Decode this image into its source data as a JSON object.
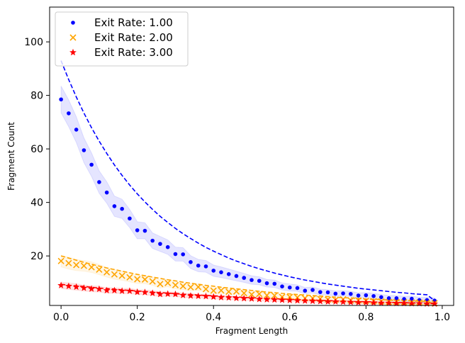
{
  "chart_data": {
    "type": "scatter",
    "xlabel": "Fragment Length",
    "ylabel": "Fragment Count",
    "xlim": [
      -0.03,
      1.03
    ],
    "ylim": [
      1.5,
      113
    ],
    "xticks": [
      0.0,
      0.2,
      0.4,
      0.6,
      0.8,
      1.0
    ],
    "xtick_labels": [
      "0.0",
      "0.2",
      "0.4",
      "0.6",
      "0.8",
      "1.0"
    ],
    "yticks": [
      20,
      40,
      60,
      80,
      100
    ],
    "ytick_labels": [
      "20",
      "40",
      "60",
      "80",
      "100"
    ],
    "legend_position": "top-left",
    "grid": false,
    "x": [
      0.0,
      0.02,
      0.04,
      0.06,
      0.08,
      0.1,
      0.12,
      0.14,
      0.16,
      0.18,
      0.2,
      0.22,
      0.24,
      0.26,
      0.28,
      0.3,
      0.32,
      0.34,
      0.36,
      0.38,
      0.4,
      0.42,
      0.44,
      0.46,
      0.48,
      0.5,
      0.52,
      0.54,
      0.56,
      0.58,
      0.6,
      0.62,
      0.64,
      0.66,
      0.68,
      0.7,
      0.72,
      0.74,
      0.76,
      0.78,
      0.8,
      0.82,
      0.84,
      0.86,
      0.88,
      0.9,
      0.92,
      0.94,
      0.96,
      0.98
    ],
    "series": [
      {
        "name": "Exit Rate: 1.00",
        "color": "#0000ff",
        "marker": "dot",
        "values": [
          78.5,
          73.3,
          67.2,
          59.5,
          54.1,
          47.6,
          43.7,
          38.6,
          37.6,
          34.0,
          29.6,
          29.4,
          25.7,
          24.5,
          23.3,
          20.7,
          20.6,
          17.7,
          16.4,
          16.1,
          14.5,
          13.9,
          13.2,
          12.5,
          11.8,
          11.0,
          10.7,
          9.8,
          9.6,
          8.6,
          8.2,
          8.0,
          7.0,
          7.3,
          6.5,
          6.4,
          5.9,
          6.0,
          5.8,
          5.2,
          5.3,
          5.0,
          4.6,
          4.2,
          4.2,
          3.9,
          4.0,
          3.5,
          3.5,
          3.3
        ],
        "fit": [
          93.0,
          85.9,
          79.4,
          73.4,
          67.9,
          62.9,
          58.3,
          54.0,
          50.1,
          46.5,
          43.2,
          40.2,
          37.4,
          34.8,
          32.5,
          30.3,
          28.3,
          26.5,
          24.8,
          23.2,
          21.8,
          20.5,
          19.2,
          18.1,
          17.1,
          16.1,
          15.2,
          14.4,
          13.6,
          12.9,
          12.2,
          11.6,
          11.0,
          10.5,
          10.0,
          9.5,
          9.1,
          8.7,
          8.3,
          7.9,
          7.6,
          7.3,
          7.0,
          6.7,
          6.4,
          6.2,
          5.9,
          5.7,
          5.5,
          3.3
        ],
        "band_width": [
          5.0,
          5.0,
          4.8,
          4.6,
          4.4,
          4.2,
          4.0,
          3.8,
          3.6,
          3.4,
          3.2,
          3.0,
          2.9,
          2.8,
          2.7,
          2.6,
          2.5,
          2.4,
          2.3,
          2.2,
          2.1,
          2.0,
          1.9,
          1.8,
          1.7,
          1.6,
          1.5,
          1.4,
          1.4,
          1.3,
          1.3,
          1.2,
          1.2,
          1.1,
          1.1,
          1.0,
          1.0,
          1.0,
          1.0,
          1.0,
          1.0,
          1.0,
          1.0,
          1.0,
          1.0,
          1.0,
          1.0,
          1.0,
          1.0,
          1.0
        ]
      },
      {
        "name": "Exit Rate: 2.00",
        "color": "#ffa500",
        "marker": "x",
        "values": [
          18.1,
          17.3,
          16.6,
          16.3,
          15.8,
          14.9,
          13.9,
          13.1,
          12.6,
          12.0,
          11.3,
          11.2,
          10.5,
          9.5,
          9.9,
          9.1,
          8.7,
          8.3,
          8.4,
          7.6,
          7.0,
          7.1,
          6.6,
          6.7,
          6.1,
          5.6,
          5.8,
          5.3,
          5.2,
          4.7,
          4.7,
          4.5,
          4.2,
          4.2,
          4.0,
          3.7,
          3.6,
          3.8,
          3.4,
          3.4,
          3.2,
          3.1,
          3.0,
          2.8,
          2.8,
          2.7,
          2.6,
          2.6,
          2.5,
          2.3
        ],
        "fit": [
          20.0,
          19.2,
          18.4,
          17.6,
          16.9,
          16.2,
          15.5,
          14.9,
          14.3,
          13.7,
          13.1,
          12.6,
          12.1,
          11.6,
          11.1,
          10.7,
          10.2,
          9.8,
          9.4,
          9.0,
          8.7,
          8.3,
          8.0,
          7.7,
          7.4,
          7.1,
          6.8,
          6.5,
          6.3,
          6.0,
          5.8,
          5.6,
          5.4,
          5.2,
          5.0,
          4.8,
          4.6,
          4.4,
          4.3,
          4.1,
          3.9,
          3.8,
          3.7,
          3.5,
          3.4,
          3.3,
          3.2,
          3.1,
          3.0,
          2.3
        ],
        "band_width": [
          2.2,
          2.2,
          2.1,
          2.0,
          2.0,
          1.9,
          1.8,
          1.8,
          1.7,
          1.7,
          1.6,
          1.6,
          1.5,
          1.5,
          1.4,
          1.4,
          1.3,
          1.3,
          1.2,
          1.2,
          1.1,
          1.1,
          1.0,
          1.0,
          1.0,
          0.9,
          0.9,
          0.9,
          0.8,
          0.8,
          0.8,
          0.8,
          0.7,
          0.7,
          0.7,
          0.7,
          0.7,
          0.6,
          0.6,
          0.6,
          0.6,
          0.6,
          0.6,
          0.6,
          0.6,
          0.6,
          0.6,
          0.6,
          0.6,
          0.6
        ]
      },
      {
        "name": "Exit Rate: 3.00",
        "color": "#ff0000",
        "marker": "star",
        "values": [
          9.0,
          8.7,
          8.4,
          8.0,
          7.7,
          7.6,
          7.1,
          7.1,
          6.9,
          6.9,
          6.5,
          6.4,
          6.1,
          5.7,
          5.8,
          5.7,
          5.3,
          5.1,
          5.0,
          4.9,
          4.7,
          4.5,
          4.4,
          4.2,
          4.1,
          4.0,
          3.8,
          3.7,
          3.6,
          3.5,
          3.4,
          3.3,
          3.2,
          3.1,
          3.0,
          2.9,
          2.9,
          2.8,
          2.7,
          2.6,
          2.6,
          2.5,
          2.4,
          2.4,
          2.3,
          2.3,
          2.2,
          2.2,
          2.1,
          2.1
        ],
        "fit": [
          9.4,
          9.1,
          8.8,
          8.6,
          8.3,
          8.0,
          7.8,
          7.6,
          7.3,
          7.1,
          6.9,
          6.7,
          6.5,
          6.3,
          6.1,
          5.9,
          5.7,
          5.6,
          5.4,
          5.2,
          5.1,
          4.9,
          4.8,
          4.7,
          4.5,
          4.4,
          4.3,
          4.1,
          4.0,
          3.9,
          3.8,
          3.7,
          3.6,
          3.5,
          3.4,
          3.3,
          3.2,
          3.1,
          3.0,
          2.9,
          2.9,
          2.8,
          2.7,
          2.6,
          2.6,
          2.5,
          2.4,
          2.4,
          2.3,
          2.1
        ],
        "band_width": [
          1.2,
          1.2,
          1.2,
          1.1,
          1.1,
          1.1,
          1.0,
          1.0,
          1.0,
          1.0,
          0.9,
          0.9,
          0.9,
          0.9,
          0.8,
          0.8,
          0.8,
          0.8,
          0.7,
          0.7,
          0.7,
          0.7,
          0.7,
          0.6,
          0.6,
          0.6,
          0.6,
          0.6,
          0.6,
          0.5,
          0.5,
          0.5,
          0.5,
          0.5,
          0.5,
          0.5,
          0.5,
          0.5,
          0.5,
          0.5,
          0.5,
          0.5,
          0.5,
          0.5,
          0.5,
          0.5,
          0.5,
          0.5,
          0.5,
          0.5
        ]
      }
    ]
  }
}
